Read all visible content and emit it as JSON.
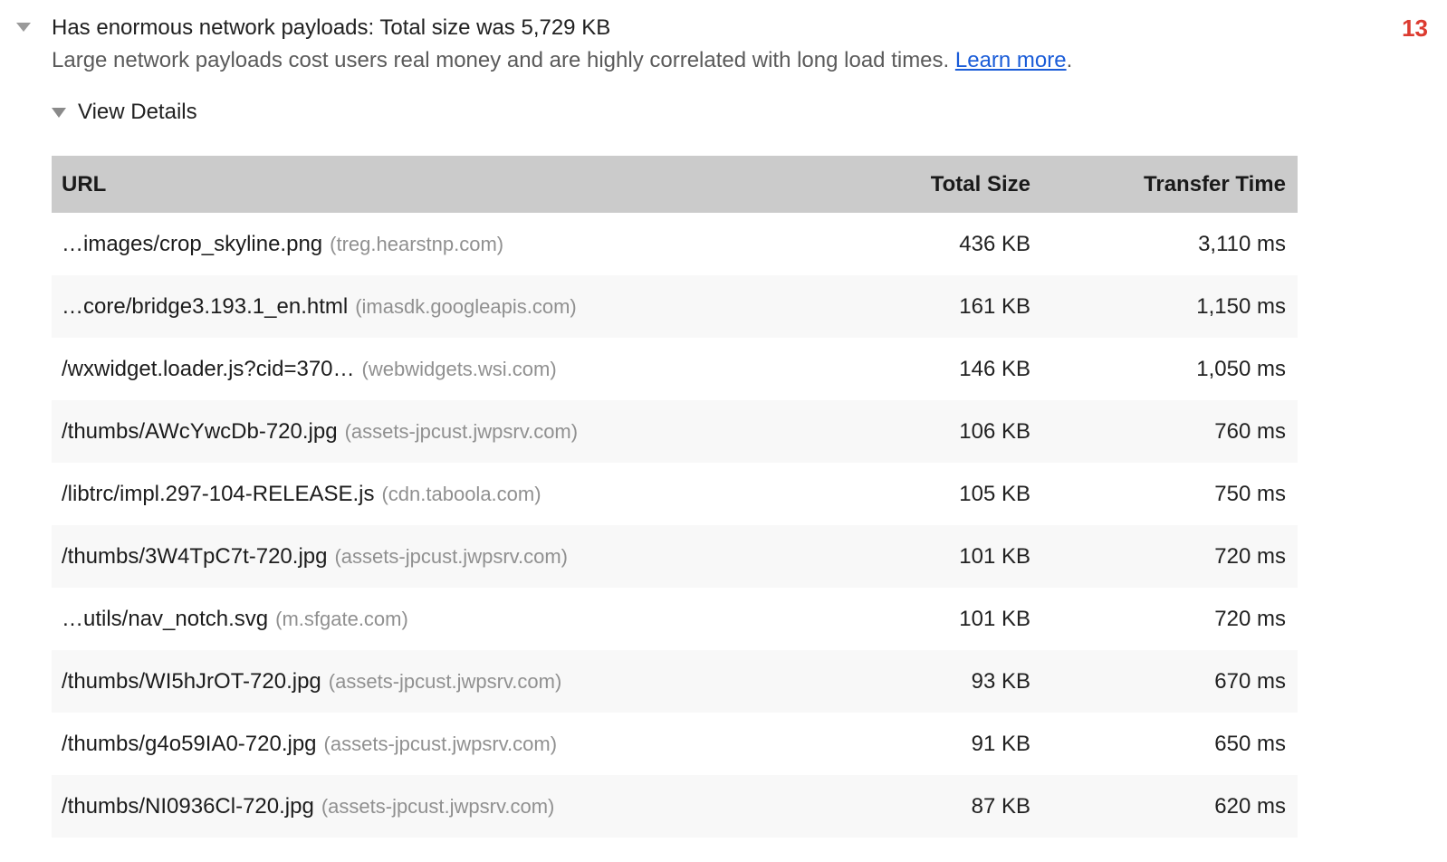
{
  "audit": {
    "title": "Has enormous network payloads: Total size was 5,729 KB",
    "description": "Large network payloads cost users real money and are highly correlated with long load times.",
    "learn_more_label": "Learn more",
    "after_link_text": ".",
    "score": "13",
    "view_details_label": "View Details",
    "colors": {
      "score_red": "#dc3b30",
      "link_blue": "#1a5cd8",
      "header_gray": "#cbcbcb",
      "stripe_gray": "#f8f8f8",
      "domain_gray": "#909090"
    }
  },
  "table": {
    "columns": [
      {
        "label": "URL"
      },
      {
        "label": "Total Size"
      },
      {
        "label": "Transfer Time"
      }
    ],
    "rows": [
      {
        "url": "…images/crop_skyline.png",
        "domain": "(treg.hearstnp.com)",
        "size": "436 KB",
        "time": "3,110 ms"
      },
      {
        "url": "…core/bridge3.193.1_en.html",
        "domain": "(imasdk.googleapis.com)",
        "size": "161 KB",
        "time": "1,150 ms"
      },
      {
        "url": "/wxwidget.loader.js?cid=370…",
        "domain": "(webwidgets.wsi.com)",
        "size": "146 KB",
        "time": "1,050 ms"
      },
      {
        "url": "/thumbs/AWcYwcDb-720.jpg",
        "domain": "(assets-jpcust.jwpsrv.com)",
        "size": "106 KB",
        "time": "760 ms"
      },
      {
        "url": "/libtrc/impl.297-104-RELEASE.js",
        "domain": "(cdn.taboola.com)",
        "size": "105 KB",
        "time": "750 ms"
      },
      {
        "url": "/thumbs/3W4TpC7t-720.jpg",
        "domain": "(assets-jpcust.jwpsrv.com)",
        "size": "101 KB",
        "time": "720 ms"
      },
      {
        "url": "…utils/nav_notch.svg",
        "domain": "(m.sfgate.com)",
        "size": "101 KB",
        "time": "720 ms"
      },
      {
        "url": "/thumbs/WI5hJrOT-720.jpg",
        "domain": "(assets-jpcust.jwpsrv.com)",
        "size": "93 KB",
        "time": "670 ms"
      },
      {
        "url": "/thumbs/g4o59IA0-720.jpg",
        "domain": "(assets-jpcust.jwpsrv.com)",
        "size": "91 KB",
        "time": "650 ms"
      },
      {
        "url": "/thumbs/NI0936Cl-720.jpg",
        "domain": "(assets-jpcust.jwpsrv.com)",
        "size": "87 KB",
        "time": "620 ms"
      }
    ]
  }
}
